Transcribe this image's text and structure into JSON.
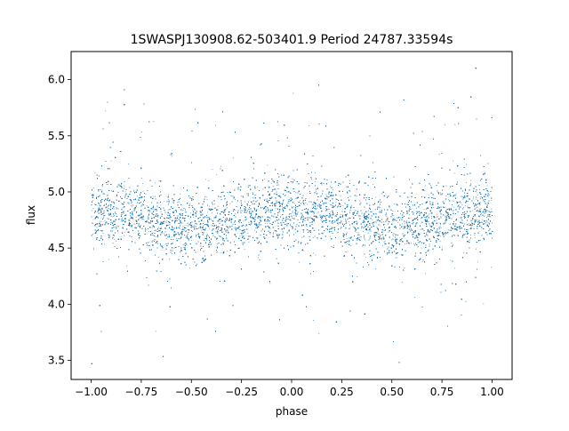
{
  "chart_data": {
    "type": "scatter",
    "title": "1SWASPJ130908.62-503401.9 Period 24787.33594s",
    "xlabel": "phase",
    "ylabel": "flux",
    "xlim": [
      -1.1,
      1.1
    ],
    "ylim": [
      3.33,
      6.25
    ],
    "grid": false,
    "legend": "none",
    "marker_color": "#1f77b4",
    "x_ticks": [
      -1.0,
      -0.75,
      -0.5,
      -0.25,
      0.0,
      0.25,
      0.5,
      0.75,
      1.0
    ],
    "x_tick_labels": [
      "−1.00",
      "−0.75",
      "−0.50",
      "−0.25",
      "0.00",
      "0.25",
      "0.50",
      "0.75",
      "1.00"
    ],
    "y_ticks": [
      3.5,
      4.0,
      4.5,
      5.0,
      5.5,
      6.0
    ],
    "y_tick_labels": [
      "3.5",
      "4.0",
      "4.5",
      "5.0",
      "5.5",
      "6.0"
    ],
    "series": [
      {
        "phase_range": [
          -1.0,
          1.0
        ],
        "points_shown": 30000,
        "mean_flux_by_phase": {
          "phase": [
            -1.0,
            -0.875,
            -0.75,
            -0.625,
            -0.5,
            -0.375,
            -0.25,
            -0.125,
            0.0,
            0.125,
            0.25,
            0.375,
            0.5,
            0.625,
            0.75,
            0.875,
            1.0
          ],
          "flux": [
            4.84,
            4.83,
            4.79,
            4.72,
            4.67,
            4.71,
            4.77,
            4.82,
            4.84,
            4.83,
            4.79,
            4.72,
            4.67,
            4.71,
            4.77,
            4.82,
            4.84
          ]
        },
        "core_scatter_sd": 0.15,
        "flux_min": 3.46,
        "flux_max": 6.12
      }
    ]
  }
}
